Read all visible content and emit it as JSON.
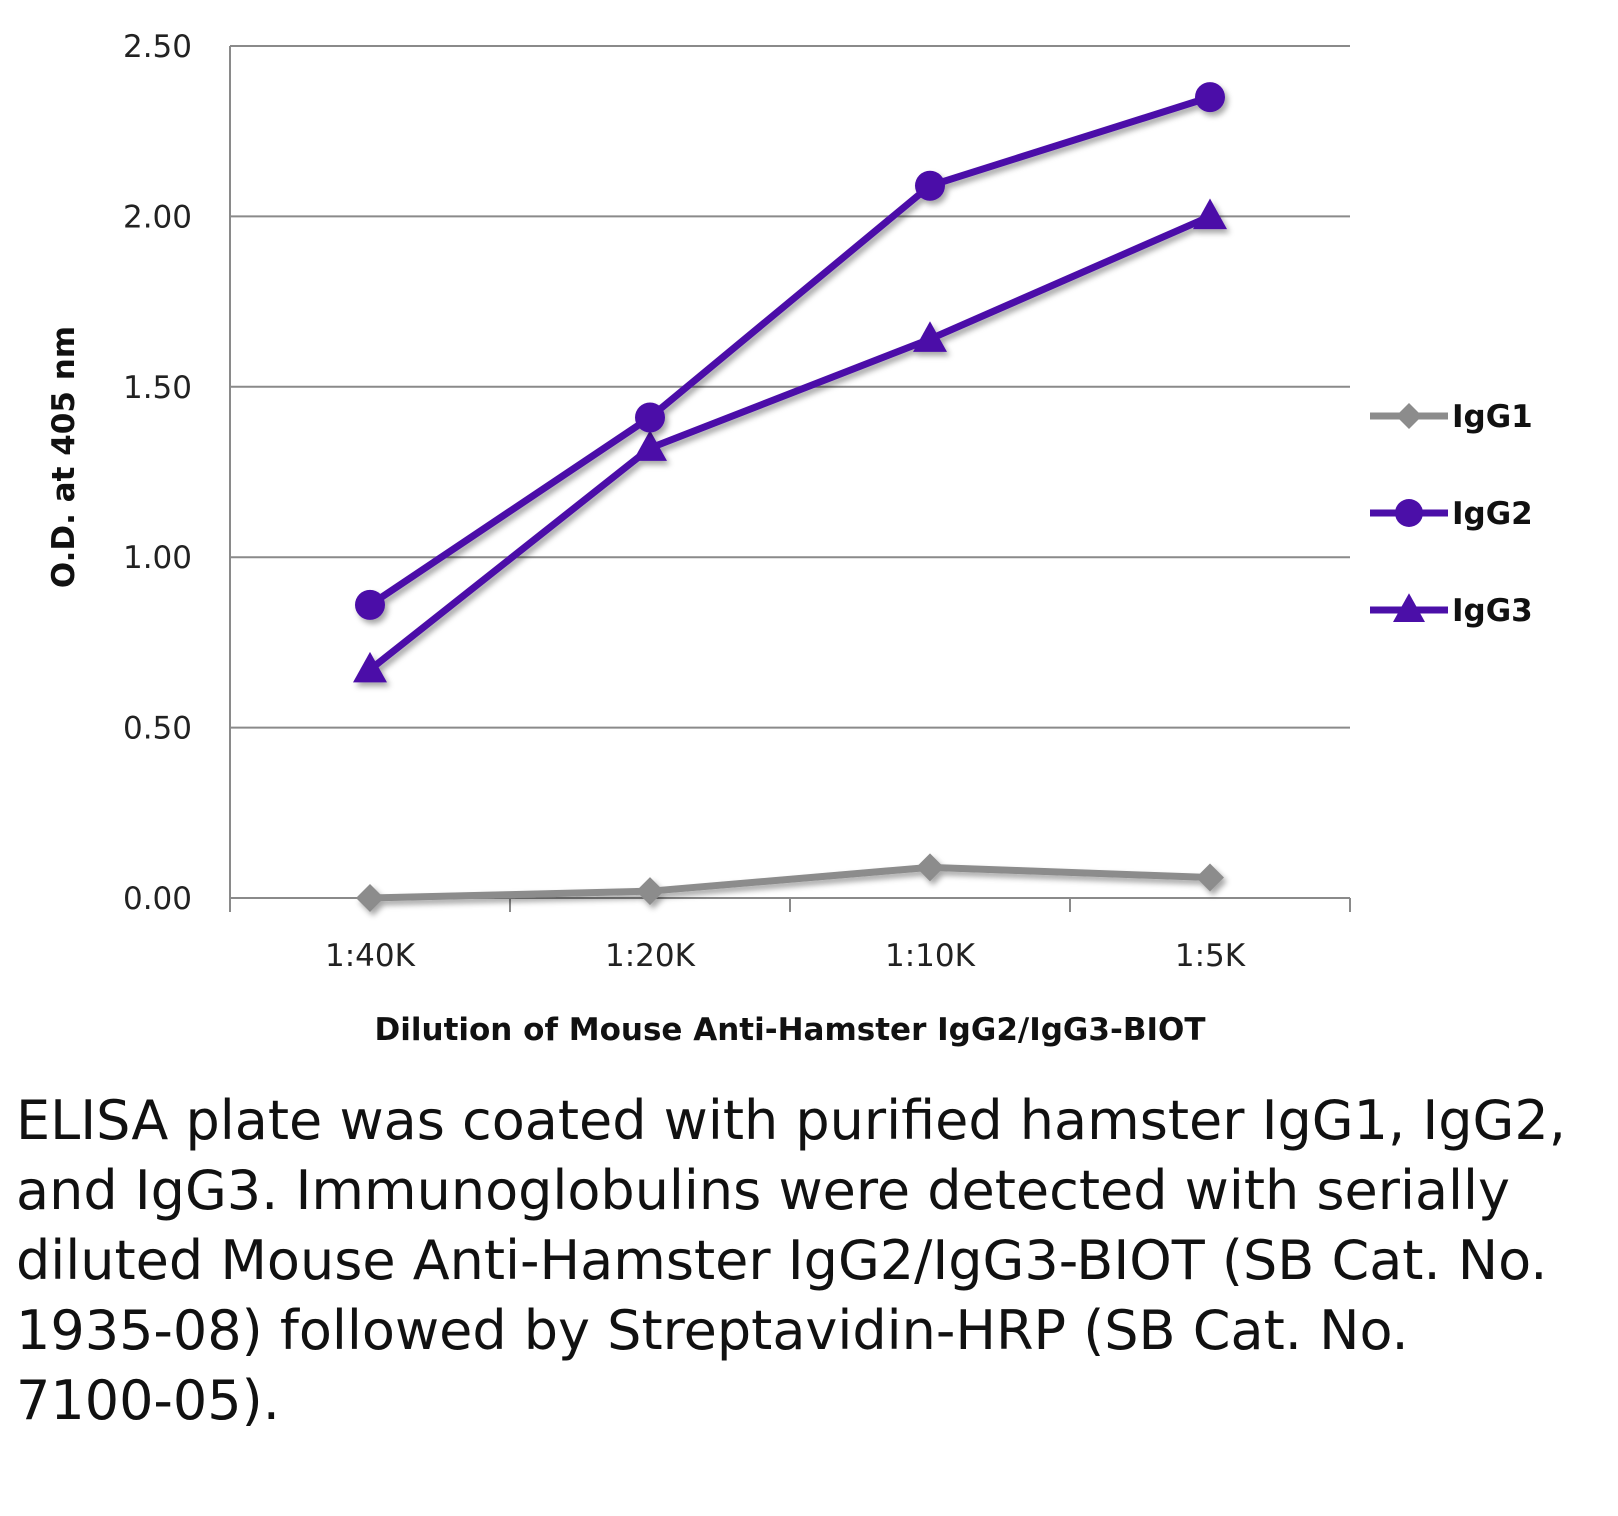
{
  "chart_data": {
    "type": "line",
    "title": "",
    "xlabel": "Dilution of Mouse Anti-Hamster IgG2/IgG3-BIOT",
    "ylabel": "O.D. at 405 nm",
    "categories": [
      "1:40K",
      "1:20K",
      "1:10K",
      "1:5K"
    ],
    "ylim": [
      0,
      2.5
    ],
    "yticks": [
      "0.00",
      "0.50",
      "1.00",
      "1.50",
      "2.00",
      "2.50"
    ],
    "grid": true,
    "legend_position": "right",
    "series": [
      {
        "name": "IgG1",
        "values": [
          0.0,
          0.02,
          0.09,
          0.06
        ],
        "color": "#8c8c8c",
        "marker": "diamond"
      },
      {
        "name": "IgG2",
        "values": [
          0.86,
          1.41,
          2.09,
          2.35
        ],
        "color": "#4b0fa8",
        "marker": "circle"
      },
      {
        "name": "IgG3",
        "values": [
          0.67,
          1.32,
          1.64,
          2.0
        ],
        "color": "#4b0fa8",
        "marker": "triangle"
      }
    ]
  },
  "caption": "ELISA plate was coated with purified hamster IgG1, IgG2, and IgG3.  Immunoglobulins were detected with serially diluted Mouse Anti-Hamster IgG2/IgG3-BIOT (SB Cat. No. 1935-08) followed by Streptavidin-HRP (SB Cat. No. 7100-05)."
}
